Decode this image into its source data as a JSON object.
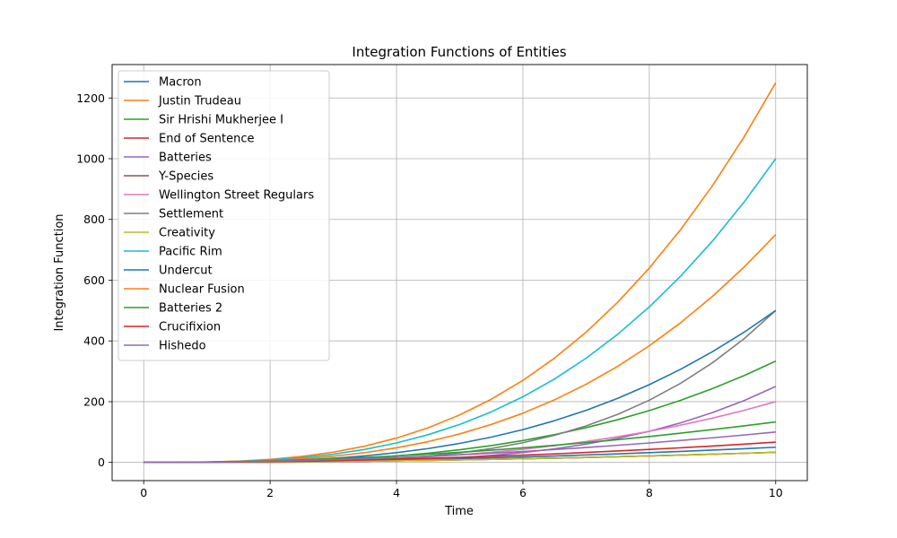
{
  "chart_data": {
    "type": "line",
    "title": "Integration Functions of Entities",
    "xlabel": "Time",
    "ylabel": "Integration Function",
    "xlim": [
      -0.5,
      10.5
    ],
    "ylim": [
      -60,
      1310
    ],
    "xticks": [
      0,
      2,
      4,
      6,
      8,
      10
    ],
    "yticks": [
      0,
      200,
      400,
      600,
      800,
      1000,
      1200
    ],
    "grid": true,
    "legend_position": "upper-left",
    "x": [
      0,
      0.5,
      1,
      1.5,
      2,
      2.5,
      3,
      3.5,
      4,
      4.5,
      5,
      5.5,
      6,
      6.5,
      7,
      7.5,
      8,
      8.5,
      9,
      9.5,
      10
    ],
    "series": [
      {
        "name": "Macron",
        "color": "#1f77b4",
        "values": [
          0,
          0.125,
          0.5,
          1.125,
          2,
          3.125,
          4.5,
          6.125,
          8,
          10.125,
          12.5,
          15.125,
          18,
          21.125,
          24.5,
          28.125,
          32,
          36.125,
          40.5,
          45.125,
          50
        ]
      },
      {
        "name": "Justin Trudeau",
        "color": "#ff7f0e",
        "values": [
          0,
          0.156,
          1.25,
          4.219,
          10,
          19.531,
          33.75,
          53.594,
          80,
          113.906,
          156.25,
          207.969,
          270,
          343.281,
          428.75,
          527.344,
          640,
          767.656,
          911.25,
          1071.719,
          1250
        ]
      },
      {
        "name": "Sir Hrishi Mukherjee I",
        "color": "#2ca02c",
        "values": [
          0,
          0.042,
          0.333,
          1.125,
          2.667,
          5.208,
          9,
          14.292,
          21.333,
          30.375,
          41.667,
          55.458,
          72,
          91.542,
          114.333,
          140.625,
          170.667,
          204.708,
          243,
          285.792,
          333.333
        ]
      },
      {
        "name": "End of Sentence",
        "color": "#d62728",
        "values": [
          0,
          0.083,
          0.333,
          0.75,
          1.333,
          2.083,
          3,
          4.083,
          5.333,
          6.75,
          8.333,
          10.083,
          12,
          14.083,
          16.333,
          18.75,
          21.333,
          24.083,
          27,
          30.083,
          33.333
        ]
      },
      {
        "name": "Batteries",
        "color": "#9467bd",
        "values": [
          0,
          0.002,
          0.025,
          0.127,
          0.4,
          0.977,
          2.025,
          3.752,
          6.4,
          10.252,
          15.625,
          22.877,
          32.4,
          44.627,
          60.025,
          79.102,
          102.4,
          130.502,
          164.025,
          203.627,
          250
        ]
      },
      {
        "name": "Y-Species",
        "color": "#8c564b",
        "values": [
          0,
          0.083,
          0.333,
          0.75,
          1.333,
          2.083,
          3,
          4.083,
          5.333,
          6.75,
          8.333,
          10.083,
          12,
          14.083,
          16.333,
          18.75,
          21.333,
          24.083,
          27,
          30.083,
          33.333
        ]
      },
      {
        "name": "Wellington Street Regulars",
        "color": "#e377c2",
        "values": [
          0,
          0.025,
          0.2,
          0.675,
          1.6,
          3.125,
          5.4,
          8.575,
          12.8,
          18.225,
          25,
          33.275,
          43.2,
          54.925,
          68.6,
          84.375,
          102.4,
          122.825,
          145.8,
          171.475,
          200
        ]
      },
      {
        "name": "Settlement",
        "color": "#7f7f7f",
        "values": [
          0,
          0.003,
          0.05,
          0.253,
          0.8,
          1.953,
          4.05,
          7.503,
          12.8,
          20.503,
          31.25,
          45.753,
          64.8,
          89.253,
          120.05,
          158.203,
          204.8,
          261.003,
          328.05,
          407.253,
          500
        ]
      },
      {
        "name": "Creativity",
        "color": "#bcbd22",
        "values": [
          0,
          0.083,
          0.333,
          0.75,
          1.333,
          2.083,
          3,
          4.083,
          5.333,
          6.75,
          8.333,
          10.083,
          12,
          14.083,
          16.333,
          18.75,
          21.333,
          24.083,
          27,
          30.083,
          33.333
        ]
      },
      {
        "name": "Pacific Rim",
        "color": "#17becf",
        "values": [
          0,
          0.125,
          1,
          3.375,
          8,
          15.625,
          27,
          42.875,
          64,
          91.125,
          125,
          166.375,
          216,
          274.625,
          343,
          421.875,
          512,
          614.125,
          729,
          857.375,
          1000
        ]
      },
      {
        "name": "Undercut",
        "color": "#1f77b4",
        "values": [
          0,
          0.063,
          0.5,
          1.688,
          4,
          7.813,
          13.5,
          21.438,
          32,
          45.563,
          62.5,
          83.188,
          108,
          137.313,
          171.5,
          210.938,
          256,
          307.063,
          364.5,
          428.688,
          500
        ]
      },
      {
        "name": "Nuclear Fusion",
        "color": "#ff7f0e",
        "values": [
          0,
          0.094,
          0.75,
          2.531,
          6,
          11.719,
          20.25,
          32.156,
          48,
          68.344,
          93.75,
          124.781,
          162,
          205.969,
          257.25,
          316.406,
          384,
          460.594,
          546.75,
          643.031,
          750
        ]
      },
      {
        "name": "Batteries 2",
        "color": "#2ca02c",
        "values": [
          0,
          0.333,
          1.333,
          3,
          5.333,
          8.333,
          12,
          16.333,
          21.333,
          27,
          33.333,
          40.333,
          48,
          56.333,
          65.333,
          75,
          85.333,
          96.333,
          108,
          120.333,
          133.333
        ]
      },
      {
        "name": "Crucifixion",
        "color": "#d62728",
        "values": [
          0,
          0.167,
          0.667,
          1.5,
          2.667,
          4.167,
          6,
          8.167,
          10.667,
          13.5,
          16.667,
          20.167,
          24,
          28.167,
          32.667,
          37.5,
          42.667,
          48.167,
          54,
          60.167,
          66.667
        ]
      },
      {
        "name": "Hishedo",
        "color": "#9467bd",
        "values": [
          0,
          0.25,
          1,
          2.25,
          4,
          6.25,
          9,
          12.25,
          16,
          20.25,
          25,
          30.25,
          36,
          42.25,
          49,
          56.25,
          64,
          72.25,
          81,
          90.25,
          100
        ]
      }
    ]
  }
}
